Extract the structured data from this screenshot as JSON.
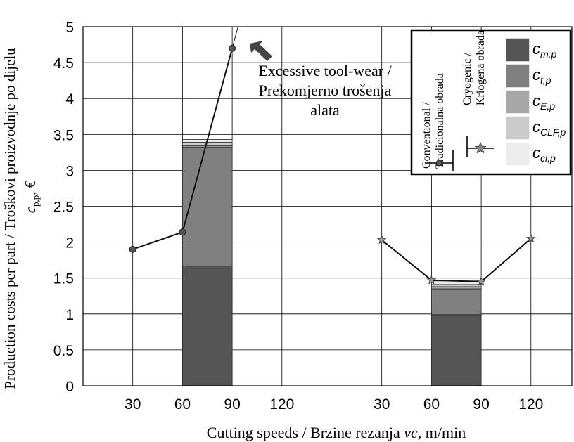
{
  "chart_data": {
    "type": "bar",
    "ylabel": "Production costs per part / Troškovi proizvodnje po dijelu c_{p,p}, €",
    "ylabel_line1": "Production costs per part / Troškovi proizvodnje po dijelu",
    "ylabel_line2_symbol": "c",
    "ylabel_line2_sub": "p,p",
    "ylabel_line2_unit": ", €",
    "xlabel_prefix": "Cutting speeds / Brzine rezanja ",
    "xlabel_var": "vc",
    "xlabel_suffix": ", m/min",
    "ylim": [
      0,
      5
    ],
    "yticks": [
      "0",
      "0.5",
      "1",
      "1.5",
      "2",
      "2.5",
      "3",
      "3.5",
      "4",
      "4.5",
      "5"
    ],
    "grid": true,
    "groups": [
      {
        "name": "Conventional / Tradicionalna obrada",
        "x_ticks": [
          "30",
          "60",
          "90",
          "120"
        ],
        "line": {
          "x": [
            30,
            60,
            90
          ],
          "y": [
            1.9,
            2.14,
            4.7
          ],
          "marker": "circle",
          "extends_above": true
        },
        "bar": {
          "x_from": 60,
          "x_to": 90,
          "stack": [
            {
              "component": "c_m,p",
              "value": 1.67
            },
            {
              "component": "c_t,p",
              "value": 1.65
            },
            {
              "component": "c_E,p",
              "value": 0.02
            },
            {
              "component": "c_CLF,p",
              "value": 0.05
            },
            {
              "component": "c_cl,p",
              "value": 0.04
            }
          ]
        }
      },
      {
        "name": "Cryogenic / Kriogena obrada",
        "x_ticks": [
          "30",
          "60",
          "90",
          "120"
        ],
        "line": {
          "x": [
            30,
            60,
            90,
            120
          ],
          "y": [
            2.03,
            1.47,
            1.45,
            2.05
          ],
          "marker": "star"
        },
        "bar": {
          "x_from": 60,
          "x_to": 90,
          "stack": [
            {
              "component": "c_m,p",
              "value": 0.99
            },
            {
              "component": "c_t,p",
              "value": 0.36
            },
            {
              "component": "c_E,p",
              "value": 0.03
            },
            {
              "component": "c_CLF,p",
              "value": 0.03
            },
            {
              "component": "c_cl,p",
              "value": 0.05
            }
          ]
        }
      }
    ],
    "components": [
      {
        "symbol": "c",
        "sub": "m,p",
        "color": "#555555"
      },
      {
        "symbol": "c",
        "sub": "t,p",
        "color": "#808080"
      },
      {
        "symbol": "c",
        "sub": "E,p",
        "color": "#a8a8a8"
      },
      {
        "symbol": "c",
        "sub": "CLF,p",
        "color": "#cbcbcb"
      },
      {
        "symbol": "c",
        "sub": "cl,p",
        "color": "#ececec"
      }
    ],
    "legend_placement": "top-right",
    "legend_lines": [
      {
        "label_line1": "Conventional /",
        "label_line2": "Tradicionalna obrada",
        "marker": "circle"
      },
      {
        "label_line1": "Cryogenic /",
        "label_line2": "Kriogena obrada",
        "marker": "star"
      }
    ],
    "annotation": {
      "lines": [
        "Excessive tool-wear /",
        "Prekomjerno trošenja",
        "alata"
      ],
      "arrow_icon": "arrow-up-left-icon"
    }
  }
}
